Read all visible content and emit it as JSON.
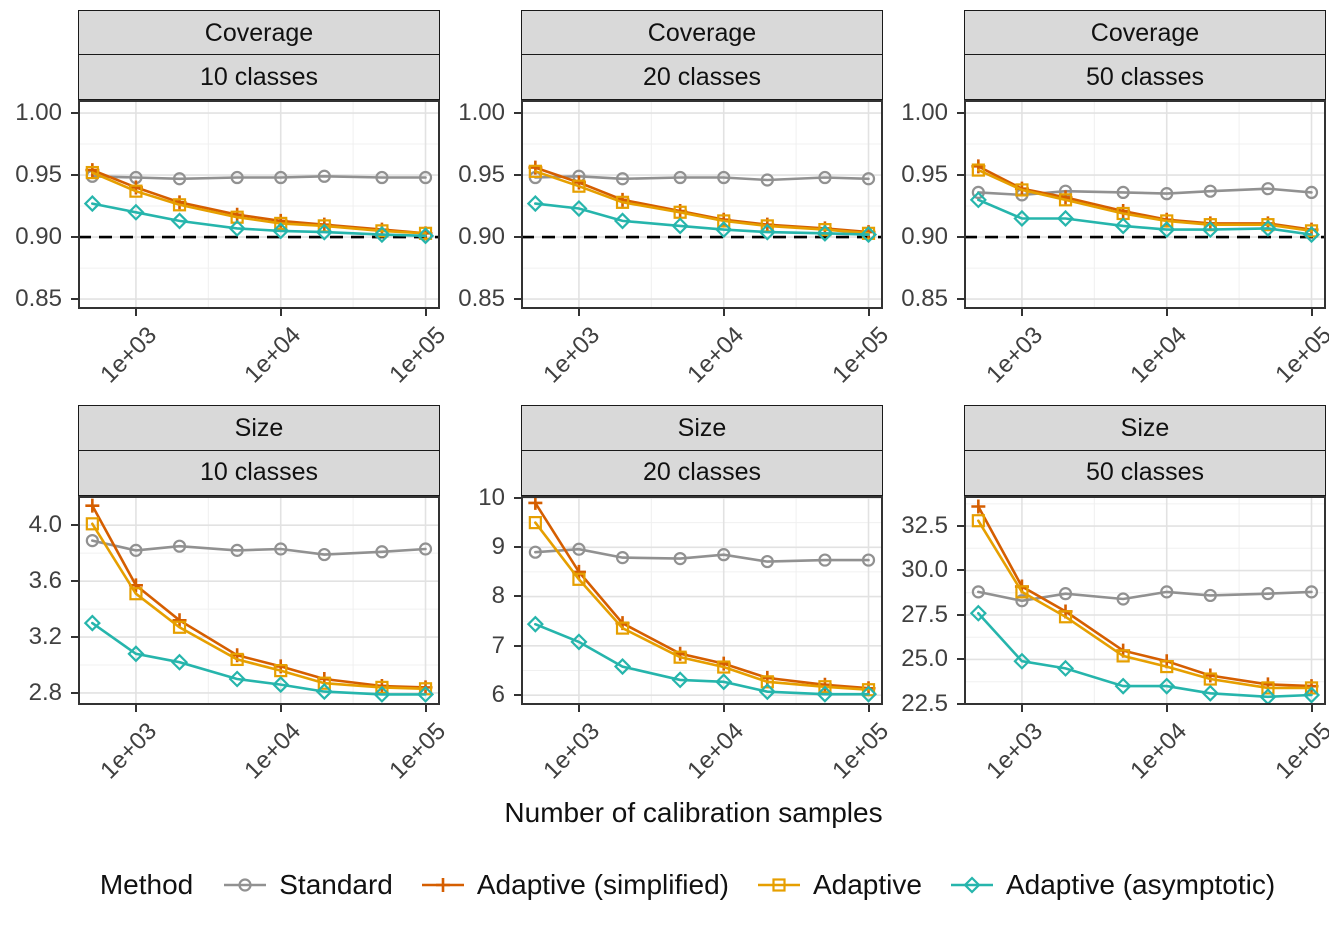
{
  "figure": {
    "axis_title_x": "Number of calibration samples",
    "legend": {
      "title": "Method",
      "items": [
        {
          "label": "Standard",
          "marker": "circle-icon",
          "color": "#919191"
        },
        {
          "label": "Adaptive (simplified)",
          "marker": "plus-icon",
          "color": "#D55E00"
        },
        {
          "label": "Adaptive",
          "marker": "square-icon",
          "color": "#E69F00"
        },
        {
          "label": "Adaptive (asymptotic)",
          "marker": "diamond-icon",
          "color": "#26B5AC"
        }
      ]
    },
    "reference_line_color": "#000000"
  },
  "chart_data": [
    {
      "type": "line",
      "facet_row": "Coverage",
      "facet_col": "10 classes",
      "xscale": "log10",
      "x": [
        500,
        1000,
        2000,
        5000,
        10000,
        20000,
        50000,
        100000
      ],
      "xlim": [
        398,
        125893
      ],
      "xticks": [
        1000,
        10000,
        100000
      ],
      "xtick_labels": [
        "1e+03",
        "1e+04",
        "1e+05"
      ],
      "xminor": [
        3162,
        31623
      ],
      "ylim": [
        0.842,
        1.0105
      ],
      "yticks": [
        0.85,
        0.9,
        0.95,
        1.0
      ],
      "ytick_labels": [
        "0.85",
        "0.90",
        "0.95",
        "1.00"
      ],
      "yminor": [
        0.875,
        0.925,
        0.975
      ],
      "ref_line_y": 0.9,
      "series": [
        {
          "name": "Standard",
          "values": [
            0.949,
            0.948,
            0.947,
            0.948,
            0.948,
            0.949,
            0.948,
            0.948
          ]
        },
        {
          "name": "Adaptive (simplified)",
          "values": [
            0.954,
            0.94,
            0.928,
            0.918,
            0.913,
            0.91,
            0.906,
            0.903
          ]
        },
        {
          "name": "Adaptive",
          "values": [
            0.952,
            0.937,
            0.926,
            0.916,
            0.911,
            0.909,
            0.905,
            0.903
          ]
        },
        {
          "name": "Adaptive (asymptotic)",
          "values": [
            0.927,
            0.92,
            0.913,
            0.907,
            0.905,
            0.904,
            0.902,
            0.901
          ]
        }
      ]
    },
    {
      "type": "line",
      "facet_row": "Coverage",
      "facet_col": "20 classes",
      "xscale": "log10",
      "x": [
        500,
        1000,
        2000,
        5000,
        10000,
        20000,
        50000,
        100000
      ],
      "xlim": [
        398,
        125893
      ],
      "xticks": [
        1000,
        10000,
        100000
      ],
      "xtick_labels": [
        "1e+03",
        "1e+04",
        "1e+05"
      ],
      "xminor": [
        3162,
        31623
      ],
      "ylim": [
        0.842,
        1.0105
      ],
      "yticks": [
        0.85,
        0.9,
        0.95,
        1.0
      ],
      "ytick_labels": [
        "0.85",
        "0.90",
        "0.95",
        "1.00"
      ],
      "yminor": [
        0.875,
        0.925,
        0.975
      ],
      "ref_line_y": 0.9,
      "series": [
        {
          "name": "Standard",
          "values": [
            0.948,
            0.949,
            0.947,
            0.948,
            0.948,
            0.946,
            0.948,
            0.947
          ]
        },
        {
          "name": "Adaptive (simplified)",
          "values": [
            0.956,
            0.944,
            0.93,
            0.921,
            0.914,
            0.91,
            0.907,
            0.904
          ]
        },
        {
          "name": "Adaptive",
          "values": [
            0.953,
            0.941,
            0.928,
            0.92,
            0.913,
            0.909,
            0.906,
            0.903
          ]
        },
        {
          "name": "Adaptive (asymptotic)",
          "values": [
            0.927,
            0.923,
            0.913,
            0.909,
            0.906,
            0.904,
            0.903,
            0.902
          ]
        }
      ]
    },
    {
      "type": "line",
      "facet_row": "Coverage",
      "facet_col": "50 classes",
      "xscale": "log10",
      "x": [
        500,
        1000,
        2000,
        5000,
        10000,
        20000,
        50000,
        100000
      ],
      "xlim": [
        398,
        125893
      ],
      "xticks": [
        1000,
        10000,
        100000
      ],
      "xtick_labels": [
        "1e+03",
        "1e+04",
        "1e+05"
      ],
      "xminor": [
        3162,
        31623
      ],
      "ylim": [
        0.842,
        1.0105
      ],
      "yticks": [
        0.85,
        0.9,
        0.95,
        1.0
      ],
      "ytick_labels": [
        "0.85",
        "0.90",
        "0.95",
        "1.00"
      ],
      "yminor": [
        0.875,
        0.925,
        0.975
      ],
      "ref_line_y": 0.9,
      "series": [
        {
          "name": "Standard",
          "values": [
            0.936,
            0.934,
            0.937,
            0.936,
            0.935,
            0.937,
            0.939,
            0.936
          ]
        },
        {
          "name": "Adaptive (simplified)",
          "values": [
            0.957,
            0.939,
            0.932,
            0.921,
            0.914,
            0.911,
            0.911,
            0.906
          ]
        },
        {
          "name": "Adaptive",
          "values": [
            0.954,
            0.938,
            0.93,
            0.919,
            0.913,
            0.91,
            0.91,
            0.905
          ]
        },
        {
          "name": "Adaptive (asymptotic)",
          "values": [
            0.93,
            0.915,
            0.915,
            0.909,
            0.906,
            0.906,
            0.907,
            0.902
          ]
        }
      ]
    },
    {
      "type": "line",
      "facet_row": "Size",
      "facet_col": "10 classes",
      "xscale": "log10",
      "x": [
        500,
        1000,
        2000,
        5000,
        10000,
        20000,
        50000,
        100000
      ],
      "xlim": [
        398,
        125893
      ],
      "xticks": [
        1000,
        10000,
        100000
      ],
      "xtick_labels": [
        "1e+03",
        "1e+04",
        "1e+05"
      ],
      "xminor": [
        3162,
        31623
      ],
      "ylim": [
        2.714,
        4.209
      ],
      "yticks": [
        2.8,
        3.2,
        3.6,
        4.0
      ],
      "ytick_labels": [
        "2.8",
        "3.2",
        "3.6",
        "4.0"
      ],
      "yminor": [
        3.0,
        3.4,
        3.8,
        4.2
      ],
      "series": [
        {
          "name": "Standard",
          "values": [
            3.89,
            3.82,
            3.85,
            3.82,
            3.83,
            3.79,
            3.81,
            3.83
          ]
        },
        {
          "name": "Adaptive (simplified)",
          "values": [
            4.14,
            3.57,
            3.32,
            3.07,
            2.99,
            2.9,
            2.85,
            2.84
          ]
        },
        {
          "name": "Adaptive",
          "values": [
            4.01,
            3.51,
            3.27,
            3.04,
            2.96,
            2.87,
            2.84,
            2.83
          ]
        },
        {
          "name": "Adaptive (asymptotic)",
          "values": [
            3.3,
            3.08,
            3.02,
            2.9,
            2.86,
            2.81,
            2.79,
            2.79
          ]
        }
      ]
    },
    {
      "type": "line",
      "facet_row": "Size",
      "facet_col": "20 classes",
      "xscale": "log10",
      "x": [
        500,
        1000,
        2000,
        5000,
        10000,
        20000,
        50000,
        100000
      ],
      "xlim": [
        398,
        125893
      ],
      "xticks": [
        1000,
        10000,
        100000
      ],
      "xtick_labels": [
        "1e+03",
        "1e+04",
        "1e+05"
      ],
      "xminor": [
        3162,
        31623
      ],
      "ylim": [
        5.8,
        10.04
      ],
      "yticks": [
        6,
        7,
        8,
        9,
        10
      ],
      "ytick_labels": [
        "6",
        "7",
        "8",
        "9",
        "10"
      ],
      "yminor": [
        6.5,
        7.5,
        8.5,
        9.5
      ],
      "series": [
        {
          "name": "Standard",
          "values": [
            8.9,
            8.96,
            8.79,
            8.77,
            8.85,
            8.71,
            8.74,
            8.74
          ]
        },
        {
          "name": "Adaptive (simplified)",
          "values": [
            9.9,
            8.5,
            7.46,
            6.84,
            6.64,
            6.35,
            6.21,
            6.14
          ]
        },
        {
          "name": "Adaptive",
          "values": [
            9.5,
            8.35,
            7.36,
            6.77,
            6.57,
            6.27,
            6.17,
            6.11
          ]
        },
        {
          "name": "Adaptive (asymptotic)",
          "values": [
            7.44,
            7.08,
            6.58,
            6.31,
            6.27,
            6.07,
            6.02,
            6.02
          ]
        }
      ]
    },
    {
      "type": "line",
      "facet_row": "Size",
      "facet_col": "50 classes",
      "xscale": "log10",
      "x": [
        500,
        1000,
        2000,
        5000,
        10000,
        20000,
        50000,
        100000
      ],
      "xlim": [
        398,
        125893
      ],
      "xticks": [
        1000,
        10000,
        100000
      ],
      "xtick_labels": [
        "1e+03",
        "1e+04",
        "1e+05"
      ],
      "xminor": [
        3162,
        31623
      ],
      "ylim": [
        22.44,
        34.19
      ],
      "yticks": [
        22.5,
        25.0,
        27.5,
        30.0,
        32.5
      ],
      "ytick_labels": [
        "22.5",
        "25.0",
        "27.5",
        "30.0",
        "32.5"
      ],
      "yminor": [
        23.75,
        26.25,
        28.75,
        31.25,
        33.75
      ],
      "series": [
        {
          "name": "Standard",
          "values": [
            28.8,
            28.3,
            28.7,
            28.4,
            28.8,
            28.6,
            28.7,
            28.8
          ]
        },
        {
          "name": "Adaptive (simplified)",
          "values": [
            33.6,
            29.1,
            27.7,
            25.5,
            24.9,
            24.1,
            23.6,
            23.5
          ]
        },
        {
          "name": "Adaptive",
          "values": [
            32.8,
            28.8,
            27.4,
            25.2,
            24.6,
            23.9,
            23.4,
            23.4
          ]
        },
        {
          "name": "Adaptive (asymptotic)",
          "values": [
            27.6,
            24.9,
            24.5,
            23.5,
            23.5,
            23.1,
            22.9,
            23.0
          ]
        }
      ]
    }
  ]
}
